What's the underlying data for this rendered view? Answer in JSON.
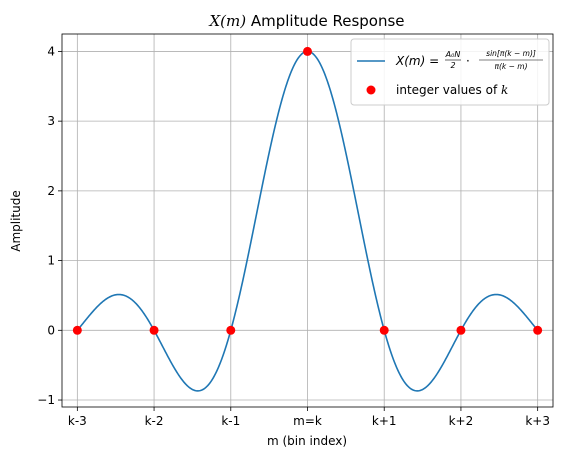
{
  "chart_data": {
    "type": "line",
    "title": "X(m) Amplitude Response",
    "title_parts": {
      "math": "X(m)",
      "rest": " Amplitude Response"
    },
    "xlabel": "m (bin index)",
    "ylabel": "Amplitude",
    "xlim": [
      -3.2,
      3.2
    ],
    "ylim": [
      -1.1,
      4.25
    ],
    "grid": true,
    "legend_position": "top-right",
    "x_ticks": [
      {
        "value": -3,
        "label": "k-3"
      },
      {
        "value": -2,
        "label": "k-2"
      },
      {
        "value": -1,
        "label": "k-1"
      },
      {
        "value": 0,
        "label": "m=k"
      },
      {
        "value": 1,
        "label": "k+1"
      },
      {
        "value": 2,
        "label": "k+2"
      },
      {
        "value": 3,
        "label": "k+3"
      }
    ],
    "y_ticks": [
      {
        "value": -1,
        "label": "−1"
      },
      {
        "value": 0,
        "label": "0"
      },
      {
        "value": 1,
        "label": "1"
      },
      {
        "value": 2,
        "label": "2"
      },
      {
        "value": 3,
        "label": "3"
      },
      {
        "value": 4,
        "label": "4"
      }
    ],
    "curve": {
      "function": "A0*N/2 * sin(pi*(k-m)) / (pi*(k-m))",
      "peak_amplitude": 4,
      "x_range": [
        -3,
        3
      ],
      "color": "#1f77b4"
    },
    "series": [
      {
        "name_parts": {
          "lhs": "X(m) = ",
          "frac1_num": "A₀N",
          "frac1_den": "2",
          "dot": "·",
          "frac2_num": "sin[π(k − m)]",
          "frac2_den": "π(k − m)"
        },
        "kind": "line",
        "color": "#1f77b4"
      },
      {
        "name_parts": {
          "text": "integer values of ",
          "math": "k"
        },
        "kind": "points",
        "color": "#ff0000",
        "x": [
          -3,
          -2,
          -1,
          0,
          1,
          2,
          3
        ],
        "y": [
          0,
          0,
          0,
          4,
          0,
          0,
          0
        ]
      }
    ]
  }
}
